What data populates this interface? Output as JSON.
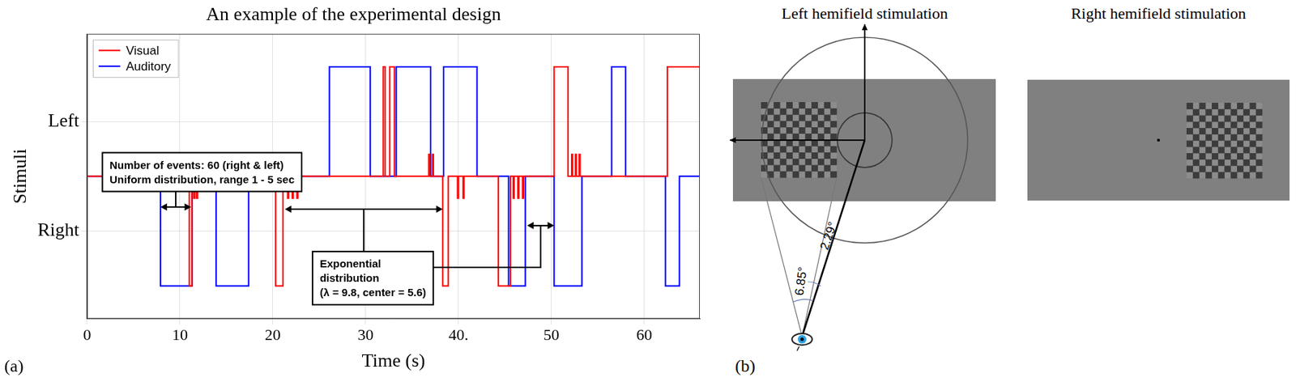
{
  "chart_data": {
    "type": "line",
    "title": "An example of the experimental design",
    "x_label": "Time (s)",
    "y_label": "Stimuli",
    "panel_label": "(a)",
    "xlim": [
      0,
      66
    ],
    "xticks": [
      0,
      10,
      20,
      30,
      {
        "value": 40,
        "label": "40."
      },
      50,
      60
    ],
    "ylim": [
      -1.3,
      1.3
    ],
    "yticks": [
      {
        "value": 0.5,
        "label": "Left"
      },
      {
        "value": -0.5,
        "label": "Right"
      }
    ],
    "grid": true,
    "legend": "upper left",
    "line_style": "steps",
    "series": [
      {
        "name": "Visual",
        "color": "#ff0000",
        "x": [
          0,
          11.0,
          11.3,
          11.5,
          11.6,
          11.8,
          11.9,
          20.3,
          21.1,
          21.6,
          21.7,
          22.1,
          22.2,
          22.6,
          22.7,
          31.9,
          32.1,
          32.6,
          33.1,
          36.8,
          36.9,
          37.2,
          37.3,
          38.3,
          38.9,
          39.9,
          40.0,
          40.5,
          40.6,
          44.3,
          45.6,
          45.9,
          46.0,
          46.4,
          46.5,
          46.9,
          47.0,
          50.3,
          51.8,
          52.2,
          52.3,
          52.6,
          52.7,
          53.0,
          53.1,
          62.5,
          66
        ],
        "values": [
          0,
          -1,
          0,
          -0.2,
          0,
          -0.2,
          0,
          -1,
          0,
          -0.2,
          0,
          -0.2,
          0,
          -0.2,
          0,
          1,
          0,
          1,
          0,
          0.2,
          0,
          0.2,
          0,
          -1,
          0,
          -0.2,
          0,
          -0.2,
          0,
          -1,
          0,
          -0.2,
          0,
          -0.2,
          0,
          -0.2,
          0,
          1,
          0,
          0.2,
          0,
          0.2,
          0,
          0.2,
          0,
          1,
          1
        ]
      },
      {
        "name": "Auditory",
        "color": "#0000ff",
        "x": [
          0,
          7.9,
          11.3,
          13.9,
          17.4,
          26.1,
          30.5,
          33.3,
          37.0,
          38.4,
          42.0,
          45.4,
          47.2,
          50.3,
          53.3,
          56.5,
          58.0,
          62.3,
          63.8,
          66
        ],
        "values": [
          0,
          -1,
          0,
          -1,
          0,
          1,
          0,
          1,
          0,
          1,
          0,
          -1,
          0,
          -1,
          0,
          1,
          0,
          -1,
          0,
          0
        ]
      }
    ],
    "annotations": [
      {
        "text": [
          "Number of events: 60 (right & left)",
          "Uniform distribution, range 1 - 5 sec"
        ],
        "spans": [
          {
            "x": [
              7.9,
              11.2
            ],
            "y": -0.28
          }
        ]
      },
      {
        "text": [
          "Exponential",
          "distribution",
          "(λ = 9.8, center = 5.6)"
        ],
        "spans": [
          {
            "x": [
              21.3,
              38.3
            ],
            "y": -0.3
          },
          {
            "x": [
              47.4,
              50.3
            ],
            "y": -0.45
          }
        ]
      }
    ]
  },
  "diagram": {
    "panel_label": "(b)",
    "left_panel": {
      "title": "Left hemifield stimulation",
      "angles": [
        "6.85°",
        "2.29°"
      ]
    },
    "right_panel": {
      "title": "Right hemifield stimulation"
    }
  }
}
